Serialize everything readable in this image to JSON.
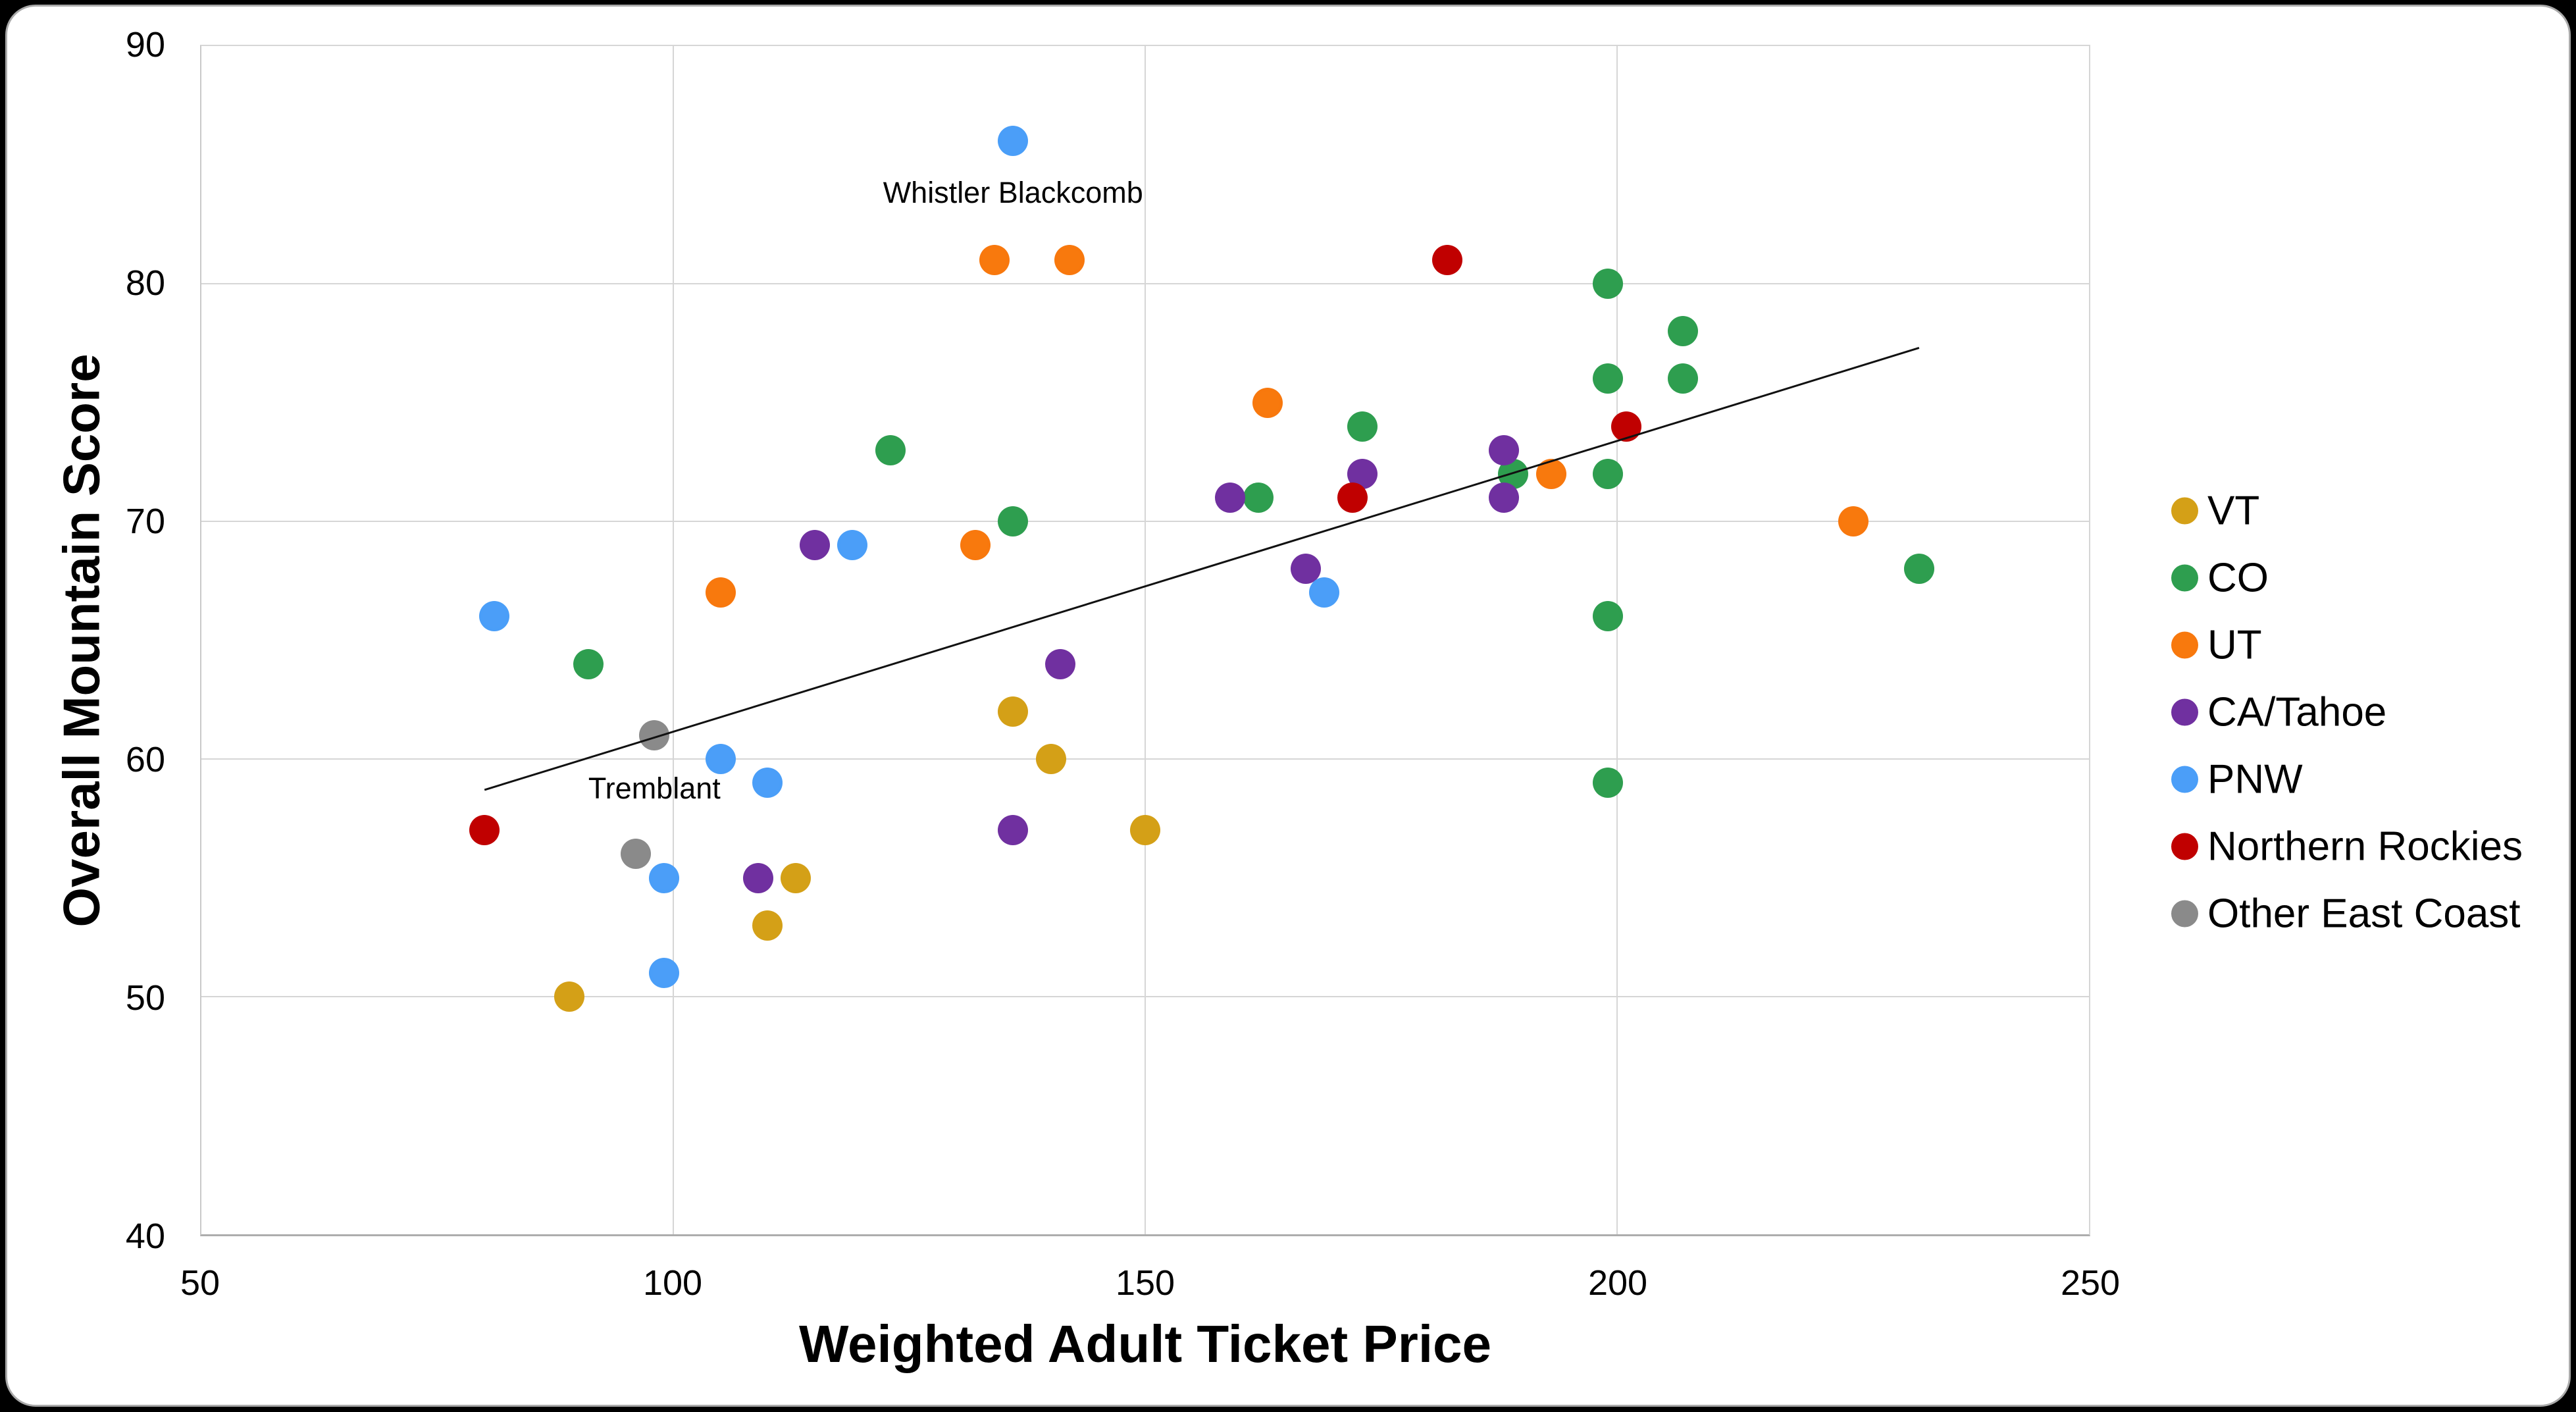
{
  "chart_data": {
    "type": "scatter",
    "title": "",
    "xlabel": "Weighted Adult Ticket Price",
    "ylabel": "Overall Mountain Score",
    "x_axis": {
      "min": 50,
      "max": 250,
      "ticks": [
        50,
        100,
        150,
        200,
        250
      ]
    },
    "y_axis": {
      "min": 40,
      "max": 90,
      "ticks": [
        40,
        50,
        60,
        70,
        80,
        90
      ]
    },
    "grid": true,
    "legend_position": "right",
    "series": [
      {
        "name": "VT",
        "color": "#D4A017",
        "points": [
          [
            89,
            50
          ],
          [
            110,
            53
          ],
          [
            113,
            55
          ],
          [
            136,
            62
          ],
          [
            140,
            60
          ],
          [
            150,
            57
          ]
        ]
      },
      {
        "name": "CO",
        "color": "#2E9E4F",
        "points": [
          [
            91,
            64
          ],
          [
            123,
            73
          ],
          [
            136,
            70
          ],
          [
            162,
            71
          ],
          [
            173,
            74
          ],
          [
            189,
            72
          ],
          [
            199,
            80
          ],
          [
            199,
            76
          ],
          [
            199,
            72
          ],
          [
            199,
            66
          ],
          [
            199,
            59
          ],
          [
            207,
            78
          ],
          [
            207,
            76
          ],
          [
            232,
            68
          ]
        ]
      },
      {
        "name": "UT",
        "color": "#F8790D",
        "points": [
          [
            105,
            67
          ],
          [
            132,
            69
          ],
          [
            134,
            81
          ],
          [
            142,
            81
          ],
          [
            163,
            75
          ],
          [
            193,
            72
          ],
          [
            225,
            70
          ]
        ]
      },
      {
        "name": "CA/Tahoe",
        "color": "#7030A0",
        "points": [
          [
            109,
            55
          ],
          [
            115,
            69
          ],
          [
            136,
            57
          ],
          [
            141,
            64
          ],
          [
            159,
            71
          ],
          [
            167,
            68
          ],
          [
            173,
            72
          ],
          [
            188,
            73
          ],
          [
            188,
            71
          ]
        ]
      },
      {
        "name": "PNW",
        "color": "#4B9EF8",
        "points": [
          [
            81,
            66
          ],
          [
            99,
            51
          ],
          [
            99,
            55
          ],
          [
            105,
            60
          ],
          [
            110,
            59
          ],
          [
            119,
            69
          ],
          [
            136,
            86
          ],
          [
            169,
            67
          ]
        ]
      },
      {
        "name": "Northern Rockies",
        "color": "#C00000",
        "points": [
          [
            80,
            57
          ],
          [
            172,
            71
          ],
          [
            182,
            81
          ],
          [
            201,
            74
          ]
        ]
      },
      {
        "name": "Other East Coast",
        "color": "#8A8A8A",
        "points": [
          [
            96,
            56
          ],
          [
            98,
            61
          ]
        ]
      }
    ],
    "annotations": [
      {
        "text": "Whistler Blackcomb",
        "x": 136,
        "y": 86
      },
      {
        "text": "Tremblant",
        "x": 98,
        "y": 61
      }
    ],
    "trendline": {
      "x1": 80,
      "y1": 58.7,
      "x2": 232,
      "y2": 77.3
    }
  },
  "colors": {
    "background": "#000000",
    "card": "#FFFFFF",
    "card_border": "#A9A9A9",
    "gridline": "#D6D6D6",
    "axis_line": "#ADADAD",
    "trendline": "#111111",
    "text": "#000000"
  }
}
